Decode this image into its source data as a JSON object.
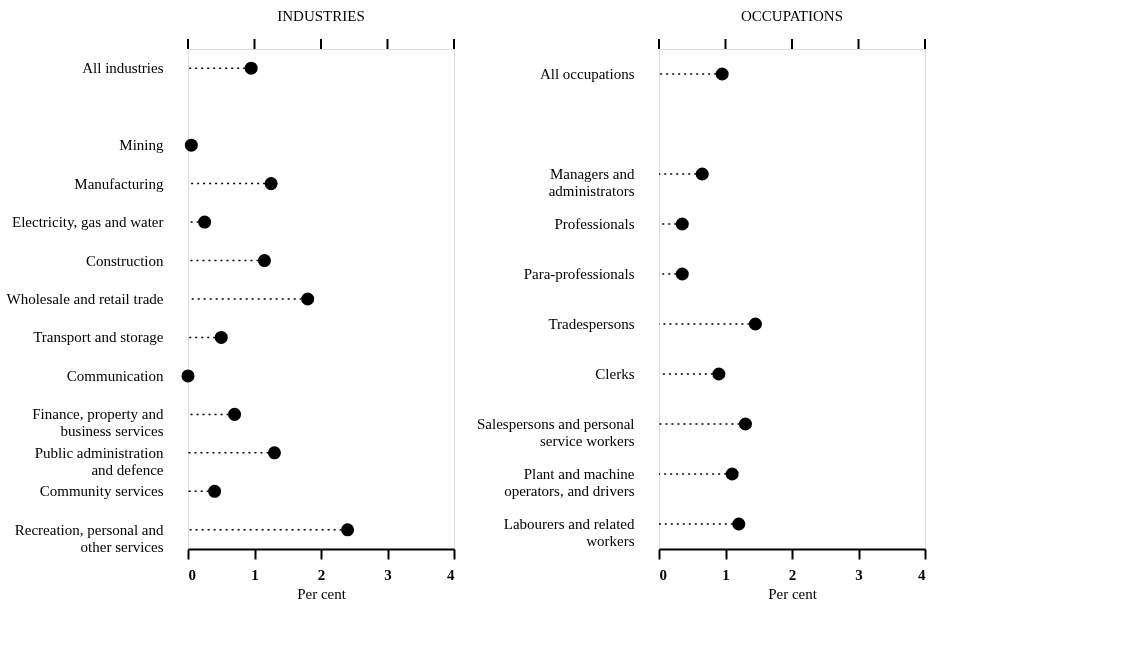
{
  "chart_data": [
    {
      "type": "lollipop",
      "orientation": "horizontal",
      "title": "INDUSTRIES",
      "xlabel": "Per cent",
      "color": "#000000",
      "marker": "circle",
      "line_style": "dotted",
      "categories": [
        "All industries",
        null,
        "Mining",
        "Manufacturing",
        "Electricity, gas and water",
        "Construction",
        "Wholesale and retail trade",
        "Transport and storage",
        "Communication",
        "Finance, property and\nbusiness services",
        "Public administration\nand defence",
        "Community services",
        "Recreation, personal and\nother services"
      ],
      "values": [
        0.95,
        null,
        0.05,
        1.25,
        0.25,
        1.15,
        1.8,
        0.5,
        0,
        0.7,
        1.3,
        0.4,
        2.4
      ],
      "xlim": [
        0,
        4
      ],
      "xticks": [
        0,
        1,
        2,
        3,
        4
      ]
    },
    {
      "type": "lollipop",
      "orientation": "horizontal",
      "title": "OCCUPATIONS",
      "xlabel": "Per cent",
      "color": "#000000",
      "marker": "circle",
      "line_style": "dotted",
      "categories": [
        "All occupations",
        null,
        "Managers and\nadministrators",
        "Professionals",
        "Para-professionals",
        "Tradespersons",
        "Clerks",
        "Salespersons and personal\nservice workers",
        "Plant and machine\noperators, and drivers",
        "Labourers and related\nworkers"
      ],
      "values": [
        0.95,
        null,
        0.65,
        0.35,
        0.35,
        1.45,
        0.9,
        1.3,
        1.1,
        1.2
      ],
      "xlim": [
        0,
        4
      ],
      "xticks": [
        0,
        1,
        2,
        3,
        4
      ]
    }
  ]
}
